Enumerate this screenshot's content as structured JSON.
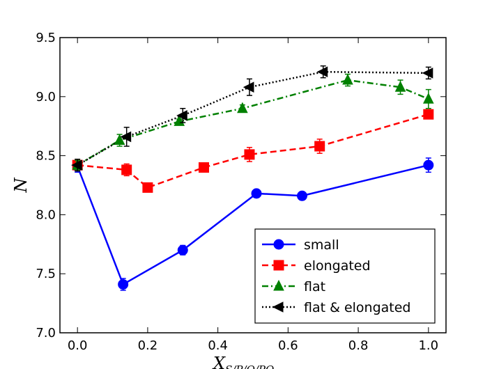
{
  "chart_data": {
    "type": "line",
    "title": "",
    "xlabel_main": "X",
    "xlabel_sub": "S/P/O/PO",
    "ylabel": "N",
    "xlim": [
      -0.05,
      1.05
    ],
    "ylim": [
      7.0,
      9.5
    ],
    "xticks": [
      0.0,
      0.2,
      0.4,
      0.6,
      0.8,
      1.0
    ],
    "xtick_labels": [
      "0.0",
      "0.2",
      "0.4",
      "0.6",
      "0.8",
      "1.0"
    ],
    "yticks": [
      7.0,
      7.5,
      8.0,
      8.5,
      9.0,
      9.5
    ],
    "ytick_labels": [
      "7.0",
      "7.5",
      "8.0",
      "8.5",
      "9.0",
      "9.5"
    ],
    "grid": false,
    "legend_position": "lower-right",
    "series": [
      {
        "name": "small",
        "color": "#0000ff",
        "linestyle": "solid",
        "marker": "circle",
        "x": [
          0.0,
          0.13,
          0.3,
          0.51,
          0.64,
          1.0
        ],
        "y": [
          8.41,
          7.41,
          7.7,
          8.18,
          8.16,
          8.42
        ],
        "yerr": [
          0.05,
          0.05,
          0.04,
          0.02,
          0.03,
          0.06
        ]
      },
      {
        "name": "elongated",
        "color": "#ff0000",
        "linestyle": "dashed",
        "marker": "square",
        "x": [
          0.0,
          0.14,
          0.2,
          0.36,
          0.49,
          0.69,
          1.0
        ],
        "y": [
          8.42,
          8.38,
          8.23,
          8.4,
          8.51,
          8.58,
          8.85
        ],
        "yerr": [
          0.04,
          0.05,
          0.02,
          0.02,
          0.06,
          0.06,
          0.03
        ]
      },
      {
        "name": "flat",
        "color": "#008000",
        "linestyle": "dashdot",
        "marker": "triangle-up",
        "x": [
          0.0,
          0.12,
          0.29,
          0.47,
          0.77,
          0.92,
          1.0
        ],
        "y": [
          8.42,
          8.63,
          8.79,
          8.9,
          9.14,
          9.08,
          8.98
        ],
        "yerr": [
          0.04,
          0.05,
          0.02,
          0.03,
          0.05,
          0.06,
          0.08
        ]
      },
      {
        "name": "flat & elongated",
        "color": "#000000",
        "linestyle": "dotted",
        "marker": "triangle-left",
        "x": [
          0.0,
          0.14,
          0.3,
          0.49,
          0.7,
          1.0
        ],
        "y": [
          8.42,
          8.66,
          8.84,
          9.08,
          9.21,
          9.2
        ],
        "yerr": [
          0.05,
          0.08,
          0.06,
          0.07,
          0.05,
          0.05
        ]
      }
    ]
  }
}
